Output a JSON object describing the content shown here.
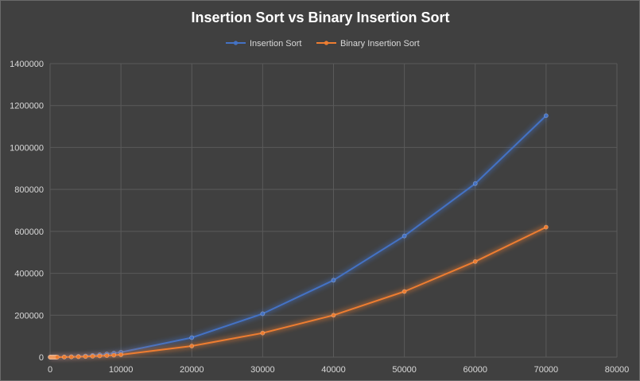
{
  "chart_data": {
    "type": "line",
    "title": "Insertion Sort vs Binary Insertion Sort",
    "xlabel": "",
    "ylabel": "",
    "xlim": [
      0,
      80000
    ],
    "ylim": [
      0,
      1400000
    ],
    "x_ticks": [
      0,
      10000,
      20000,
      30000,
      40000,
      50000,
      60000,
      70000,
      80000
    ],
    "y_ticks": [
      0,
      200000,
      400000,
      600000,
      800000,
      1000000,
      1200000,
      1400000
    ],
    "grid": true,
    "legend_position": "top",
    "x": [
      10,
      50,
      100,
      200,
      300,
      400,
      500,
      600,
      700,
      800,
      900,
      1000,
      2000,
      3000,
      4000,
      5000,
      6000,
      7000,
      8000,
      9000,
      10000,
      20000,
      30000,
      40000,
      50000,
      60000,
      70000
    ],
    "series": [
      {
        "name": "Insertion Sort",
        "color": "#4472c4",
        "values": [
          0,
          1,
          3,
          9,
          21,
          37,
          58,
          84,
          114,
          149,
          189,
          233,
          933,
          2100,
          3700,
          5800,
          8400,
          11400,
          14900,
          18900,
          23300,
          93000,
          207000,
          367000,
          578000,
          828000,
          1152000
        ]
      },
      {
        "name": "Binary Insertion Sort",
        "color": "#ed7d31",
        "values": [
          0,
          1,
          2,
          6,
          13,
          22,
          33,
          46,
          61,
          79,
          98,
          120,
          470,
          1050,
          1850,
          2900,
          4150,
          5650,
          7350,
          9300,
          11500,
          53000,
          115000,
          200000,
          313000,
          456000,
          620000
        ]
      }
    ]
  }
}
